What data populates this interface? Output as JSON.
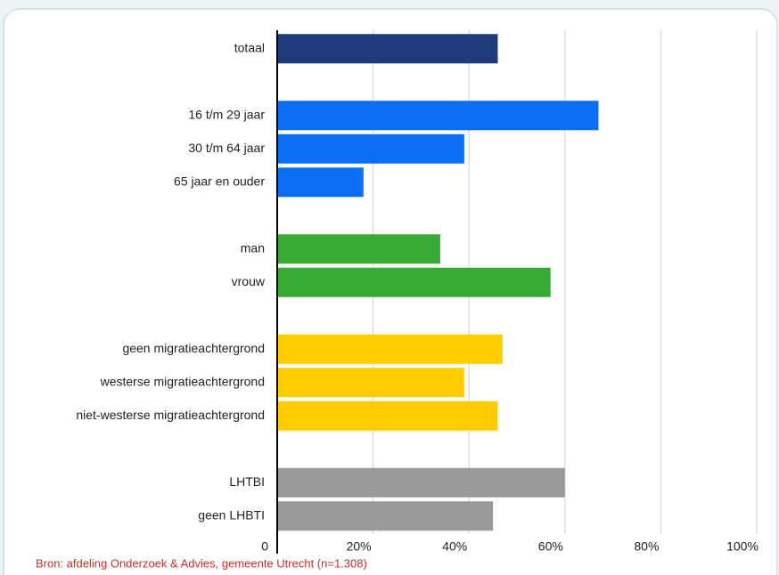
{
  "chart_data": {
    "type": "hbar",
    "categories": [
      "totaal",
      null,
      "16 t/m 29 jaar",
      "30 t/m 64 jaar",
      "65 jaar en ouder",
      null,
      "man",
      "vrouw",
      null,
      "geen migratieachtergrond",
      "westerse migratieachtergrond",
      "niet-westerse migratieachtergrond",
      null,
      "LHTBI",
      "geen LHBTI"
    ],
    "values": [
      46,
      null,
      67,
      39,
      18,
      null,
      34,
      57,
      null,
      47,
      39,
      46,
      null,
      60,
      45
    ],
    "colors": [
      "#1f3b7c",
      null,
      "#0b6ef4",
      "#0b6ef4",
      "#0b6ef4",
      null,
      "#36aa35",
      "#36aa35",
      null,
      "#ffcc00",
      "#ffcc00",
      "#ffcc00",
      null,
      "#9a9a9a",
      "#9a9a9a"
    ],
    "xlim": [
      0,
      100
    ],
    "xticks": [
      0,
      {
        "value": 20,
        "label": "20%"
      },
      {
        "value": 40,
        "label": "40%"
      },
      {
        "value": 60,
        "label": "60%"
      },
      {
        "value": 80,
        "label": "80%"
      },
      {
        "value": 100,
        "label": "100%"
      }
    ],
    "grid": true,
    "source": "Bron: afdeling Onderzoek & Advies, gemeente Utrecht (n=1.308)"
  }
}
